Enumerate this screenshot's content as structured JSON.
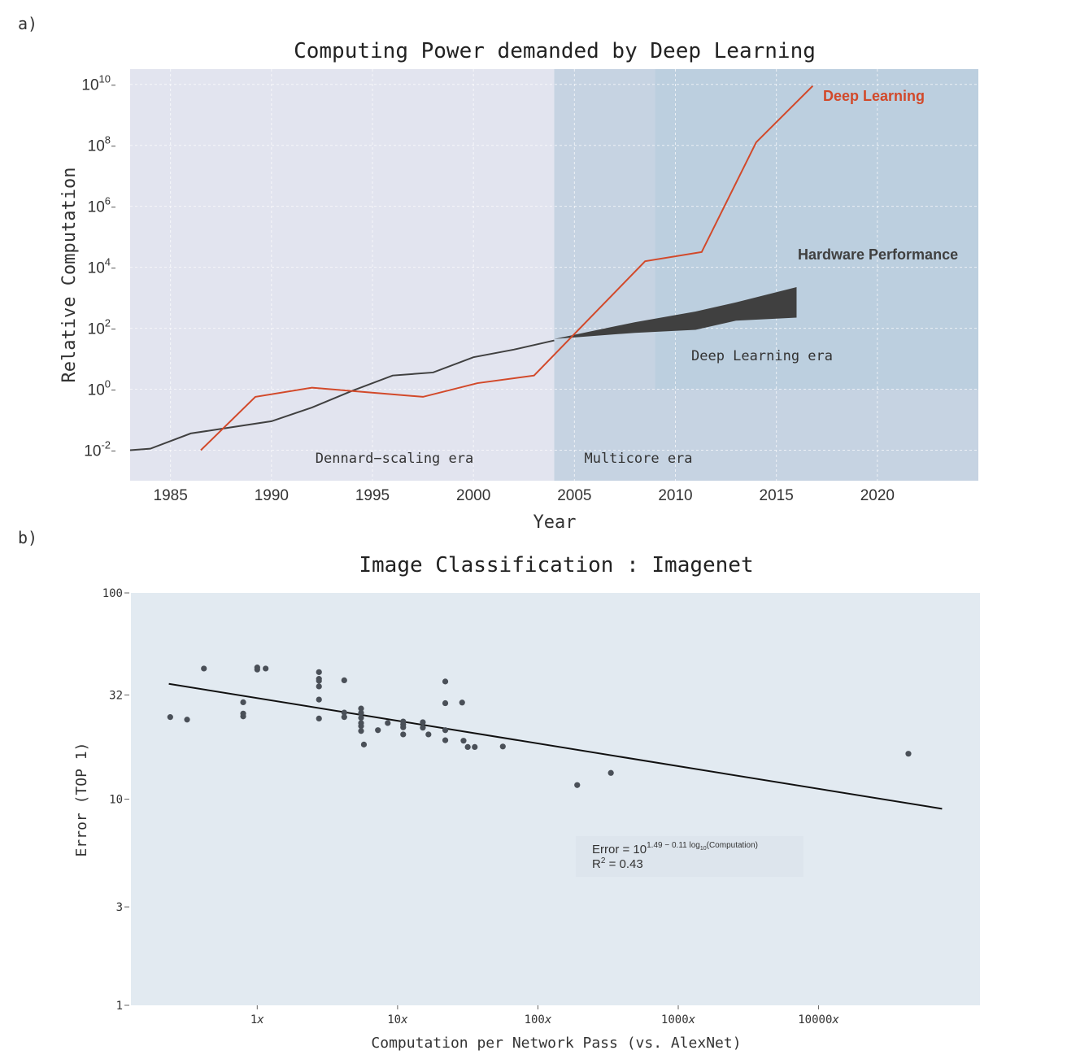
{
  "panel_a": {
    "panel_label": "a)",
    "chart_data": {
      "type": "line",
      "title": "Computing Power demanded by Deep Learning",
      "xlabel": "Year",
      "ylabel": "Relative Computation",
      "xlim": [
        1983,
        2025
      ],
      "ylim_log10": [
        -3,
        10.5
      ],
      "yscale": "log",
      "x_ticks": [
        "1985",
        "1990",
        "1995",
        "2000",
        "2005",
        "2010",
        "2015",
        "2020"
      ],
      "y_ticks": [
        {
          "base": "10",
          "exp": "-2",
          "log": -2
        },
        {
          "base": "10",
          "exp": "0",
          "log": 0
        },
        {
          "base": "10",
          "exp": "2",
          "log": 2
        },
        {
          "base": "10",
          "exp": "4",
          "log": 4
        },
        {
          "base": "10",
          "exp": "6",
          "log": 6
        },
        {
          "base": "10",
          "exp": "8",
          "log": 8
        },
        {
          "base": "10",
          "exp": "10",
          "log": 10
        }
      ],
      "grid": true,
      "regions": [
        {
          "name": "Dennard-scaling era",
          "x_from": 1983,
          "x_to": 2004,
          "color": "#e2e4ef"
        },
        {
          "name": "Multicore era",
          "x_from": 2004,
          "x_to": 2025,
          "color": "#c6d3e2"
        },
        {
          "name": "Deep Learning era",
          "x_from": 2009,
          "x_to": 2025,
          "log_from": 0,
          "log_to": 10.5,
          "color": "#bccfdf"
        }
      ],
      "region_labels": {
        "dennard": "Dennard−scaling era",
        "multicore": "Multicore era",
        "deep": "Deep Learning era"
      },
      "series": [
        {
          "name": "Deep Learning",
          "color": "#d2492a",
          "x": [
            1986.5,
            1989.2,
            1992.0,
            1997.5,
            2000.2,
            2003.0,
            2008.5,
            2011.3,
            2014.0,
            2016.8
          ],
          "log_y": [
            -2.0,
            -0.25,
            0.05,
            -0.25,
            0.2,
            0.45,
            4.2,
            4.5,
            8.1,
            9.95
          ]
        },
        {
          "name": "Hardware Performance",
          "color": "#404040",
          "x": [
            1983.0,
            1984.0,
            1986.0,
            1988.0,
            1990.0,
            1992.0,
            1994.0,
            1996.0,
            1998.0,
            2000.0,
            2002.0,
            2004.0
          ],
          "log_y": [
            -2.0,
            -1.95,
            -1.45,
            -1.25,
            -1.05,
            -0.6,
            -0.05,
            0.45,
            0.55,
            1.05,
            1.3,
            1.6
          ]
        }
      ],
      "hardware_band": {
        "x": [
          2004.0,
          2008.0,
          2011.0,
          2013.0,
          2016.0
        ],
        "log_low": [
          1.65,
          1.85,
          1.95,
          2.25,
          2.35
        ],
        "log_high": [
          1.65,
          2.2,
          2.55,
          2.85,
          3.35
        ],
        "color": "#404040"
      },
      "annotations": {
        "deep_learning": "Deep Learning",
        "hardware": "Hardware Performance"
      }
    }
  },
  "panel_b": {
    "panel_label": "b)",
    "chart_data": {
      "type": "scatter",
      "title": "Image Classification : Imagenet",
      "xlabel": "Computation per Network Pass (vs. AlexNet)",
      "ylabel": "Error (TOP 1)",
      "xscale": "log",
      "yscale": "log",
      "xlim_log10": [
        -0.9,
        5.15
      ],
      "ylim": [
        1,
        100
      ],
      "x_ticks": [
        {
          "label": "1x",
          "log": 0
        },
        {
          "label": "10x",
          "log": 1
        },
        {
          "label": "100x",
          "log": 2
        },
        {
          "label": "1000x",
          "log": 3
        },
        {
          "label": "10000x",
          "log": 4
        }
      ],
      "y_ticks": [
        {
          "label": "1",
          "value": 1
        },
        {
          "label": "3",
          "value": 3
        },
        {
          "label": "10",
          "value": 10
        },
        {
          "label": "32",
          "value": 32
        },
        {
          "label": "100",
          "value": 100
        }
      ],
      "grid": false,
      "fit_line": {
        "intercept_log10": 1.49,
        "slope": -0.11,
        "x_log_from": -0.63,
        "x_log_to": 4.88
      },
      "fit_label": {
        "prefix": "Error = 10",
        "exponent": "1.49 − 0.11 log",
        "exponent_sub": "10",
        "exponent_suffix": "(Computation)",
        "r2_prefix": "R",
        "r2_sup": "2",
        "r2_value": " = 0.43"
      },
      "points": [
        {
          "x": -0.38,
          "y": 43.0
        },
        {
          "x": -0.62,
          "y": 25.0
        },
        {
          "x": -0.5,
          "y": 24.3
        },
        {
          "x": -0.1,
          "y": 29.5
        },
        {
          "x": -0.1,
          "y": 25.2
        },
        {
          "x": -0.1,
          "y": 26.0
        },
        {
          "x": 0.0,
          "y": 43.5
        },
        {
          "x": 0.0,
          "y": 42.5
        },
        {
          "x": 0.06,
          "y": 43.0
        },
        {
          "x": 0.44,
          "y": 41.3
        },
        {
          "x": 0.44,
          "y": 38.3
        },
        {
          "x": 0.44,
          "y": 37.5
        },
        {
          "x": 0.44,
          "y": 35.2
        },
        {
          "x": 0.44,
          "y": 30.4
        },
        {
          "x": 0.44,
          "y": 24.6
        },
        {
          "x": 0.62,
          "y": 37.7
        },
        {
          "x": 0.62,
          "y": 26.3
        },
        {
          "x": 0.62,
          "y": 25.0
        },
        {
          "x": 0.74,
          "y": 27.5
        },
        {
          "x": 0.74,
          "y": 26.2
        },
        {
          "x": 0.74,
          "y": 24.8
        },
        {
          "x": 0.74,
          "y": 23.4
        },
        {
          "x": 0.74,
          "y": 22.6
        },
        {
          "x": 0.74,
          "y": 21.4
        },
        {
          "x": 0.76,
          "y": 18.4
        },
        {
          "x": 0.86,
          "y": 21.6
        },
        {
          "x": 0.93,
          "y": 23.4
        },
        {
          "x": 1.04,
          "y": 23.8
        },
        {
          "x": 1.04,
          "y": 23.0
        },
        {
          "x": 1.04,
          "y": 22.3
        },
        {
          "x": 1.04,
          "y": 20.6
        },
        {
          "x": 1.18,
          "y": 23.6
        },
        {
          "x": 1.18,
          "y": 22.2
        },
        {
          "x": 1.22,
          "y": 20.6
        },
        {
          "x": 1.34,
          "y": 37.2
        },
        {
          "x": 1.34,
          "y": 29.2
        },
        {
          "x": 1.34,
          "y": 21.6
        },
        {
          "x": 1.34,
          "y": 19.3
        },
        {
          "x": 1.46,
          "y": 29.4
        },
        {
          "x": 1.47,
          "y": 19.2
        },
        {
          "x": 1.5,
          "y": 17.9
        },
        {
          "x": 1.55,
          "y": 17.9
        },
        {
          "x": 1.75,
          "y": 18.0
        },
        {
          "x": 2.28,
          "y": 11.7
        },
        {
          "x": 2.52,
          "y": 13.4
        },
        {
          "x": 4.64,
          "y": 16.6
        }
      ]
    }
  }
}
